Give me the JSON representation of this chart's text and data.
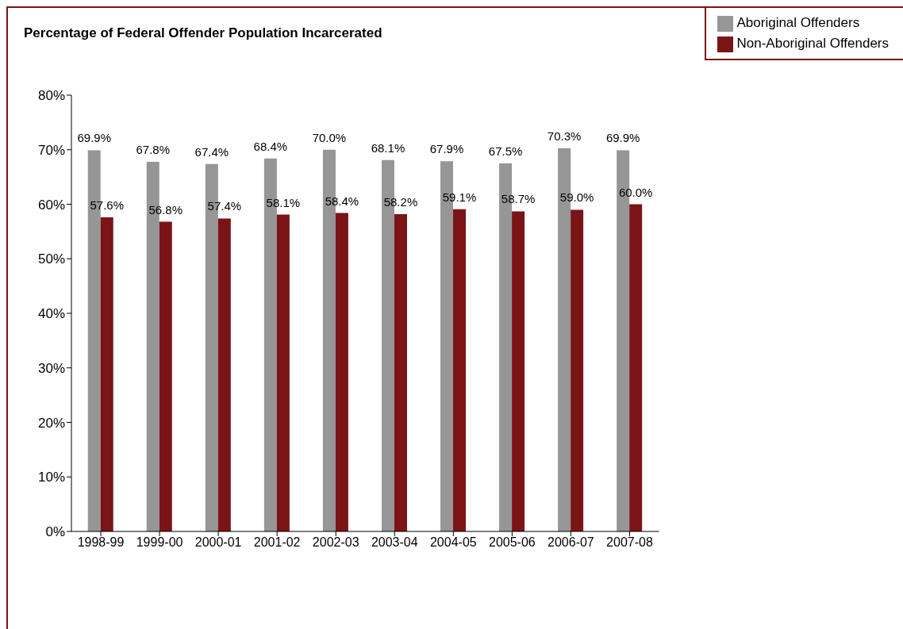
{
  "chart_data": {
    "type": "bar",
    "title": "Percentage of Federal Offender Population Incarcerated",
    "categories": [
      "1998-99",
      "1999-00",
      "2000-01",
      "2001-02",
      "2002-03",
      "2003-04",
      "2004-05",
      "2005-06",
      "2006-07",
      "2007-08"
    ],
    "series": [
      {
        "name": "Aboriginal Offenders",
        "color": "#969696",
        "values": [
          69.9,
          67.8,
          67.4,
          68.4,
          70.0,
          68.1,
          67.9,
          67.5,
          70.3,
          69.9
        ],
        "value_labels": [
          "69.9%",
          "67.8%",
          "67.4%",
          "68.4%",
          "70.0%",
          "68.1%",
          "67.9%",
          "67.5%",
          "70.3%",
          "69.9%"
        ]
      },
      {
        "name": "Non-Aboriginal Offenders",
        "color": "#7b1416",
        "values": [
          57.6,
          56.8,
          57.4,
          58.1,
          58.4,
          58.2,
          59.1,
          58.7,
          59.0,
          60.0
        ],
        "value_labels": [
          "57.6%",
          "56.8%",
          "57.4%",
          "58.1%",
          "58.4%",
          "58.2%",
          "59.1%",
          "58.7%",
          "59.0%",
          "60.0%"
        ]
      }
    ],
    "ylim": [
      0,
      80
    ],
    "yticks": [
      {
        "value": 0,
        "label": "0%"
      },
      {
        "value": 10,
        "label": "10%"
      },
      {
        "value": 20,
        "label": "20%"
      },
      {
        "value": 30,
        "label": "30%"
      },
      {
        "value": 40,
        "label": "40%"
      },
      {
        "value": 50,
        "label": "50%"
      },
      {
        "value": 60,
        "label": "60%"
      },
      {
        "value": 70,
        "label": "70%"
      },
      {
        "value": 80,
        "label": "80%"
      }
    ],
    "grid": false,
    "legend": "top right"
  }
}
